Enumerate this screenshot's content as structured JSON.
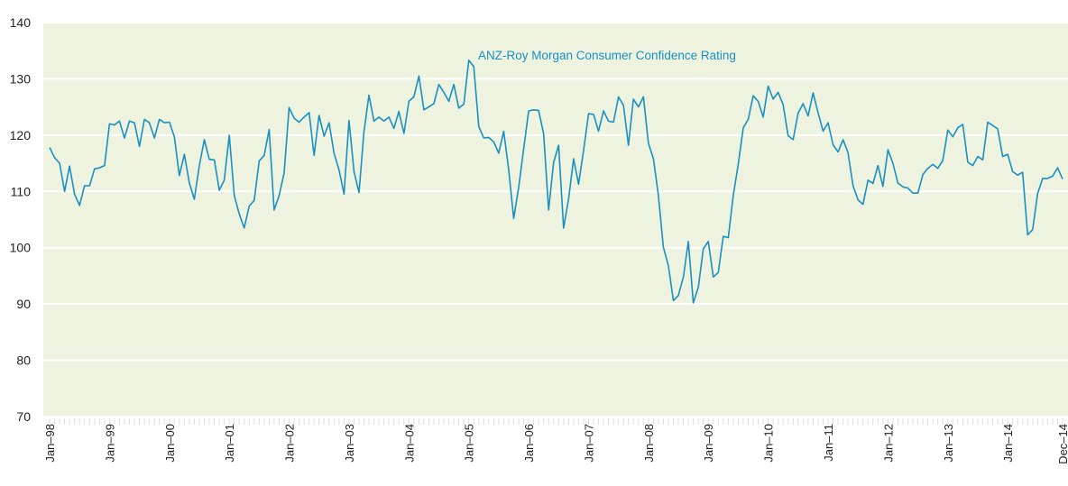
{
  "chart_data": {
    "type": "line",
    "annotation": "ANZ-Roy Morgan Consumer Confidence Rating",
    "categories": [
      "Jan–98",
      null,
      null,
      null,
      null,
      null,
      null,
      null,
      null,
      null,
      null,
      null,
      "Jan–99",
      null,
      null,
      null,
      null,
      null,
      null,
      null,
      null,
      null,
      null,
      null,
      "Jan–00",
      null,
      null,
      null,
      null,
      null,
      null,
      null,
      null,
      null,
      null,
      null,
      "Jan–01",
      null,
      null,
      null,
      null,
      null,
      null,
      null,
      null,
      null,
      null,
      null,
      "Jan–02",
      null,
      null,
      null,
      null,
      null,
      null,
      null,
      null,
      null,
      null,
      null,
      "Jan–03",
      null,
      null,
      null,
      null,
      null,
      null,
      null,
      null,
      null,
      null,
      null,
      "Jan–04",
      null,
      null,
      null,
      null,
      null,
      null,
      null,
      null,
      null,
      null,
      null,
      "Jan–05",
      null,
      null,
      null,
      null,
      null,
      null,
      null,
      null,
      null,
      null,
      null,
      "Jan–06",
      null,
      null,
      null,
      null,
      null,
      null,
      null,
      null,
      null,
      null,
      null,
      "Jan–07",
      null,
      null,
      null,
      null,
      null,
      null,
      null,
      null,
      null,
      null,
      null,
      "Jan–08",
      null,
      null,
      null,
      null,
      null,
      null,
      null,
      null,
      null,
      null,
      null,
      "Jan–09",
      null,
      null,
      null,
      null,
      null,
      null,
      null,
      null,
      null,
      null,
      null,
      "Jan–10",
      null,
      null,
      null,
      null,
      null,
      null,
      null,
      null,
      null,
      null,
      null,
      "Jan–11",
      null,
      null,
      null,
      null,
      null,
      null,
      null,
      null,
      null,
      null,
      null,
      "Jan–12",
      null,
      null,
      null,
      null,
      null,
      null,
      null,
      null,
      null,
      null,
      null,
      "Jan–13",
      null,
      null,
      null,
      null,
      null,
      null,
      null,
      null,
      null,
      null,
      null,
      "Jan–14",
      null,
      null,
      null,
      null,
      null,
      null,
      null,
      null,
      null,
      null,
      "Dec–14"
    ],
    "series": [
      {
        "color": "#1a8fc0",
        "values": [
          117.8,
          116,
          115,
          110,
          114.5,
          109.5,
          107.5,
          111,
          111,
          114,
          114.2,
          114.6,
          122,
          121.8,
          122.5,
          119.5,
          122.5,
          122.2,
          118,
          122.8,
          122.2,
          119.5,
          122.8,
          122.2,
          122.3,
          119.7,
          112.8,
          116.6,
          111.5,
          108.6,
          114.6,
          119.2,
          115.7,
          115.6,
          110.2,
          112,
          120,
          109.3,
          106,
          103.5,
          107.4,
          108.4,
          115.4,
          116.4,
          121,
          106.7,
          109.3,
          113.3,
          124.9,
          123,
          122.3,
          123.2,
          124,
          116.4,
          123.5,
          119.8,
          122.2,
          116.8,
          113.8,
          109.5,
          122.6,
          113.5,
          109.8,
          120.6,
          127.1,
          122.5,
          123.2,
          122.5,
          123.2,
          121.2,
          124.2,
          120.3,
          126,
          126.8,
          130.5,
          124.5,
          125,
          125.6,
          129,
          127.6,
          126,
          129,
          124.8,
          125.5,
          133.3,
          132.2,
          121.5,
          119.5,
          119.6,
          118.8,
          116.8,
          120.7,
          113.9,
          105.2,
          110.7,
          117.5,
          124.3,
          124.5,
          124.4,
          120.2,
          106.7,
          115.1,
          118.2,
          103.5,
          108.6,
          115.8,
          111.3,
          117.2,
          123.8,
          123.7,
          120.7,
          124.3,
          122.5,
          122.3,
          126.8,
          125.3,
          118.2,
          126.4,
          125,
          126.8,
          118.6,
          115.8,
          109.3,
          100.1,
          96.8,
          90.6,
          91.5,
          94.8,
          101.1,
          90.2,
          93,
          99.8,
          101.1,
          94.8,
          95.6,
          102,
          101.8,
          109.3,
          114.8,
          121.3,
          122.8,
          127,
          126,
          123.2,
          128.7,
          126.4,
          127.6,
          125.4,
          119.9,
          119.2,
          123.9,
          125.6,
          123.4,
          127.5,
          124,
          120.7,
          122.2,
          118.3,
          117,
          119.2,
          116.9,
          111,
          108.5,
          107.7,
          112,
          111.4,
          114.6,
          110.9,
          117.4,
          115,
          111.5,
          110.8,
          110.6,
          109.7,
          109.7,
          113,
          114.1,
          114.8,
          114.1,
          115.5,
          120.9,
          119.7,
          121.3,
          121.9,
          115.2,
          114.6,
          116.2,
          115.6,
          122.3,
          121.7,
          121.1,
          116.2,
          116.6,
          113.5,
          112.9,
          113.4,
          102.3,
          103.2,
          109.6,
          112.3,
          112.3,
          112.7,
          114.2,
          112.2
        ]
      }
    ],
    "ylim": [
      70,
      140
    ],
    "yticks": [
      70,
      80,
      90,
      100,
      110,
      120,
      130,
      140
    ],
    "grid": true,
    "background": "#eef3e0"
  }
}
